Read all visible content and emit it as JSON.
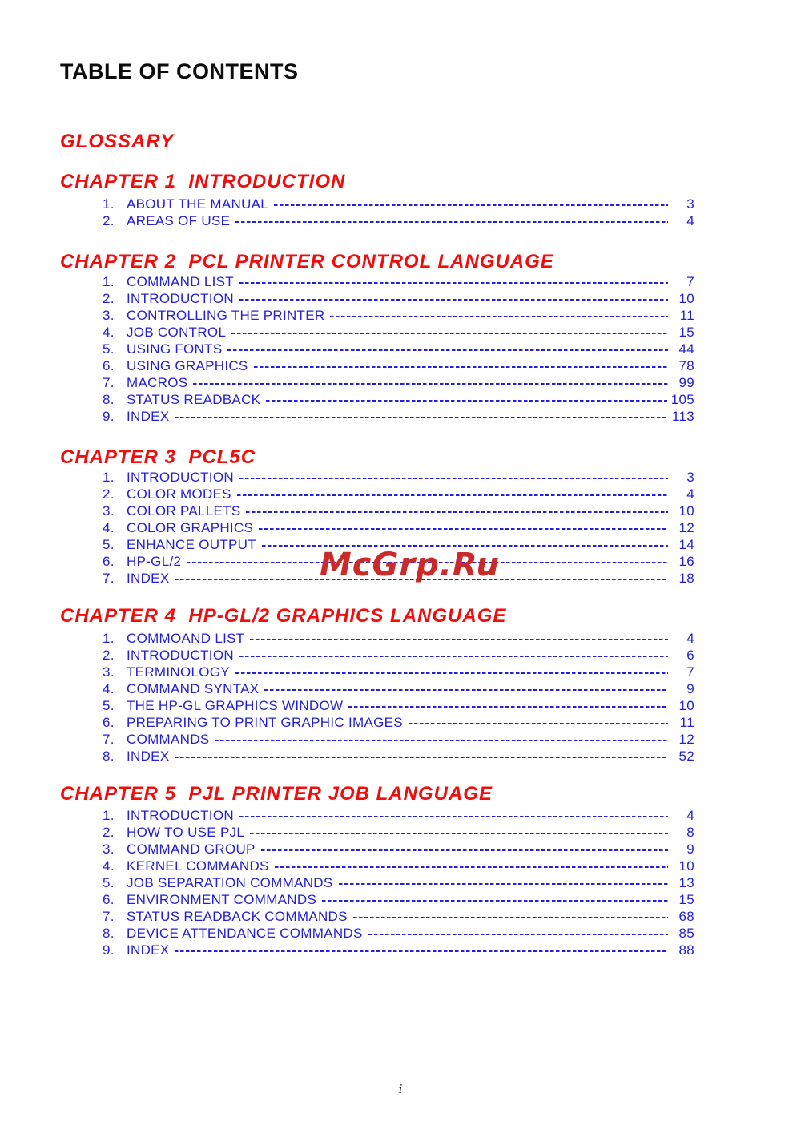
{
  "document": {
    "title": "TABLE OF CONTENTS",
    "watermark": "McGrp.Ru",
    "page_footer": "i"
  },
  "colors": {
    "heading_red": "#f20d0d",
    "item_blue": "#2420d6",
    "watermark_red": "#cb2a2a",
    "title_black": "#0c0c0c"
  },
  "sections": [
    {
      "heading": "GLOSSARY",
      "items": []
    },
    {
      "heading": "CHAPTER 1  INTRODUCTION",
      "items": [
        {
          "num": "1.",
          "label": "ABOUT THE MANUAL",
          "page": "3"
        },
        {
          "num": "2.",
          "label": "AREAS OF USE",
          "page": "4"
        }
      ]
    },
    {
      "heading": "CHAPTER 2  PCL PRINTER CONTROL LANGUAGE",
      "items": [
        {
          "num": "1.",
          "label": "COMMAND LIST",
          "page": "7"
        },
        {
          "num": "2.",
          "label": "INTRODUCTION",
          "page": "10"
        },
        {
          "num": "3.",
          "label": "CONTROLLING THE PRINTER",
          "page": "11"
        },
        {
          "num": "4.",
          "label": "JOB CONTROL",
          "page": "15"
        },
        {
          "num": "5.",
          "label": "USING FONTS",
          "page": "44"
        },
        {
          "num": "6.",
          "label": "USING GRAPHICS",
          "page": "78"
        },
        {
          "num": "7.",
          "label": "MACROS",
          "page": "99"
        },
        {
          "num": "8.",
          "label": "STATUS READBACK",
          "page": "105"
        },
        {
          "num": "9.",
          "label": "INDEX",
          "page": "113"
        }
      ]
    },
    {
      "heading": "CHAPTER 3  PCL5C",
      "items": [
        {
          "num": "1.",
          "label": "INTRODUCTION",
          "page": "3"
        },
        {
          "num": "2.",
          "label": "COLOR MODES",
          "page": "4"
        },
        {
          "num": "3.",
          "label": "COLOR PALLETS",
          "page": "10"
        },
        {
          "num": "4.",
          "label": "COLOR GRAPHICS",
          "page": "12"
        },
        {
          "num": "5.",
          "label": "ENHANCE OUTPUT",
          "page": "14"
        },
        {
          "num": "6.",
          "label": "HP-GL/2",
          "page": "16"
        },
        {
          "num": "7.",
          "label": "INDEX",
          "page": "18"
        }
      ]
    },
    {
      "heading": "CHAPTER 4  HP-GL/2 GRAPHICS LANGUAGE",
      "items": [
        {
          "num": "1.",
          "label": "COMMOAND LIST",
          "page": "4"
        },
        {
          "num": "2.",
          "label": "INTRODUCTION",
          "page": "6"
        },
        {
          "num": "3.",
          "label": "TERMINOLOGY",
          "page": "7"
        },
        {
          "num": "4.",
          "label": "COMMAND SYNTAX",
          "page": "9"
        },
        {
          "num": "5.",
          "label": "THE HP-GL GRAPHICS WINDOW",
          "page": "10"
        },
        {
          "num": "6.",
          "label": "PREPARING TO PRINT GRAPHIC IMAGES",
          "page": "11"
        },
        {
          "num": "7.",
          "label": "COMMANDS",
          "page": "12"
        },
        {
          "num": "8.",
          "label": "INDEX",
          "page": "52"
        }
      ]
    },
    {
      "heading": "CHAPTER 5  PJL PRINTER JOB LANGUAGE",
      "items": [
        {
          "num": "1.",
          "label": "INTRODUCTION",
          "page": "4"
        },
        {
          "num": "2.",
          "label": "HOW TO USE PJL",
          "page": "8"
        },
        {
          "num": "3.",
          "label": "COMMAND GROUP",
          "page": "9"
        },
        {
          "num": "4.",
          "label": "KERNEL COMMANDS",
          "page": "10"
        },
        {
          "num": "5.",
          "label": "JOB SEPARATION COMMANDS",
          "page": "13"
        },
        {
          "num": "6.",
          "label": "ENVIRONMENT COMMANDS",
          "page": "15"
        },
        {
          "num": "7.",
          "label": "STATUS READBACK COMMANDS",
          "page": "68"
        },
        {
          "num": "8.",
          "label": "DEVICE ATTENDANCE COMMANDS",
          "page": "85"
        },
        {
          "num": "9.",
          "label": "INDEX",
          "page": "88"
        }
      ]
    }
  ]
}
